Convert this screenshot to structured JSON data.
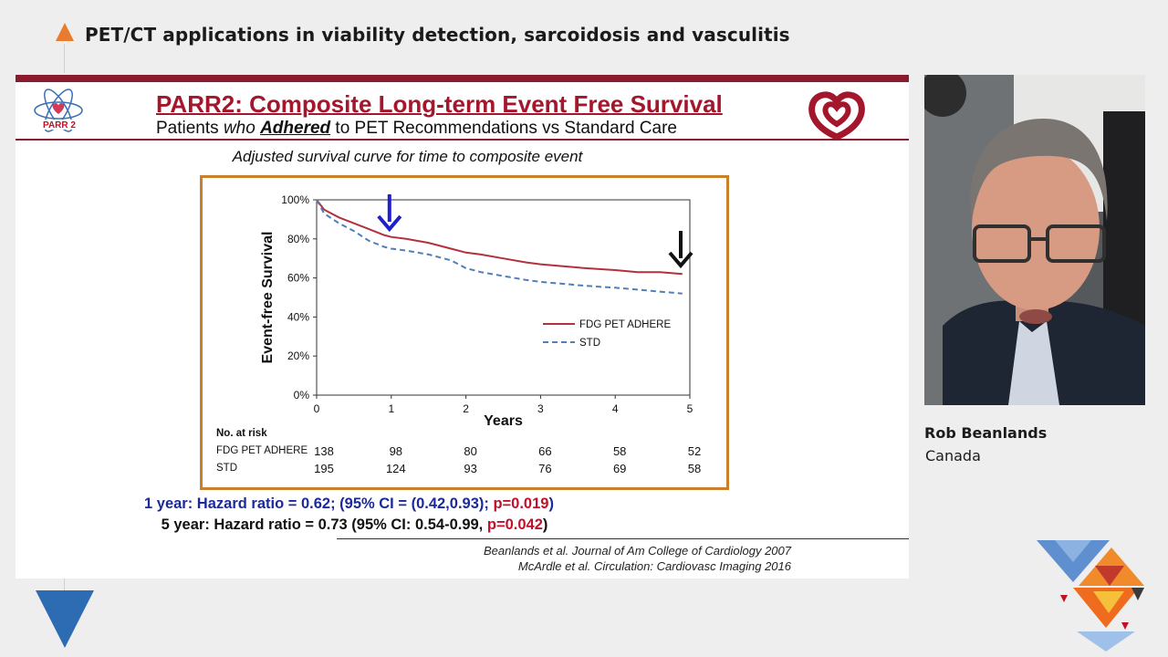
{
  "session": {
    "title": "PET/CT applications in viability detection, sarcoidosis and vasculitis"
  },
  "slide": {
    "logo_text": "PARR 2",
    "title": "PARR2: Composite Long-term Event Free Survival",
    "subtitle_pre": "Patients ",
    "subtitle_who": "who",
    "subtitle_adhered": "Adhered",
    "subtitle_post": " to PET Recommendations vs Standard Care",
    "chart_caption": "Adjusted survival curve for time to composite event",
    "hr_1year_a": "1 year: Hazard ratio = 0.62; (95% CI = (0.42,0.93); ",
    "hr_1year_p": "p=0.019",
    "hr_1year_end": ")",
    "hr_5year_a": "5 year: Hazard ratio = 0.73 (95% CI: 0.54-0.99, ",
    "hr_5year_p": "p=0.042",
    "hr_5year_end": ")",
    "ref1": "Beanlands et al. Journal of Am College of Cardiology 2007",
    "ref2": "McArdle et al. Circulation: Cardiovasc Imaging 2016"
  },
  "chart_data": {
    "type": "line",
    "title": "",
    "xlabel": "Years",
    "ylabel": "Event-free Survival",
    "xlim": [
      0,
      5
    ],
    "ylim": [
      0,
      100
    ],
    "x_ticks": [
      "0",
      "1",
      "2",
      "3",
      "4",
      "5"
    ],
    "y_ticks": [
      "0%",
      "20%",
      "40%",
      "60%",
      "80%",
      "100%"
    ],
    "legend_position": "center-right",
    "series": [
      {
        "name": "FDG PET ADHERE",
        "color": "#b3313d",
        "style": "solid",
        "x": [
          0,
          0.1,
          0.3,
          0.5,
          0.7,
          0.9,
          1.0,
          1.2,
          1.5,
          1.8,
          2.0,
          2.2,
          2.5,
          2.8,
          3.0,
          3.3,
          3.6,
          4.0,
          4.3,
          4.6,
          4.9
        ],
        "y": [
          100,
          95,
          91,
          88,
          85,
          82,
          81,
          80,
          78,
          75,
          73,
          72,
          70,
          68,
          67,
          66,
          65,
          64,
          63,
          63,
          62
        ]
      },
      {
        "name": "STD",
        "color": "#4f7fb8",
        "style": "dashed",
        "x": [
          0,
          0.1,
          0.3,
          0.5,
          0.7,
          0.9,
          1.0,
          1.2,
          1.5,
          1.8,
          2.0,
          2.2,
          2.5,
          2.8,
          3.0,
          3.3,
          3.6,
          4.0,
          4.3,
          4.6,
          4.9
        ],
        "y": [
          100,
          93,
          88,
          84,
          79,
          76,
          75,
          74,
          72,
          69,
          65,
          63,
          61,
          59,
          58,
          57,
          56,
          55,
          54,
          53,
          52
        ]
      }
    ],
    "risk_table": {
      "header": "No. at risk",
      "rows": [
        {
          "label": "FDG PET ADHERE",
          "values": [
            "138",
            "98",
            "80",
            "66",
            "58",
            "52"
          ]
        },
        {
          "label": "STD",
          "values": [
            "195",
            "124",
            "93",
            "76",
            "69",
            "58"
          ]
        }
      ]
    },
    "annotations": [
      {
        "type": "arrow-down",
        "x": 1,
        "color": "#1f1fd0"
      },
      {
        "type": "arrow-down",
        "x": 5,
        "color": "#111111"
      }
    ]
  },
  "speaker": {
    "name": "Rob Beanlands",
    "country": "Canada"
  },
  "colors": {
    "accent_orange": "#e97b2e",
    "slide_maroon": "#8a1b2e",
    "chart_border": "#c8812a",
    "bottom_triangle": "#2d6bb3"
  }
}
